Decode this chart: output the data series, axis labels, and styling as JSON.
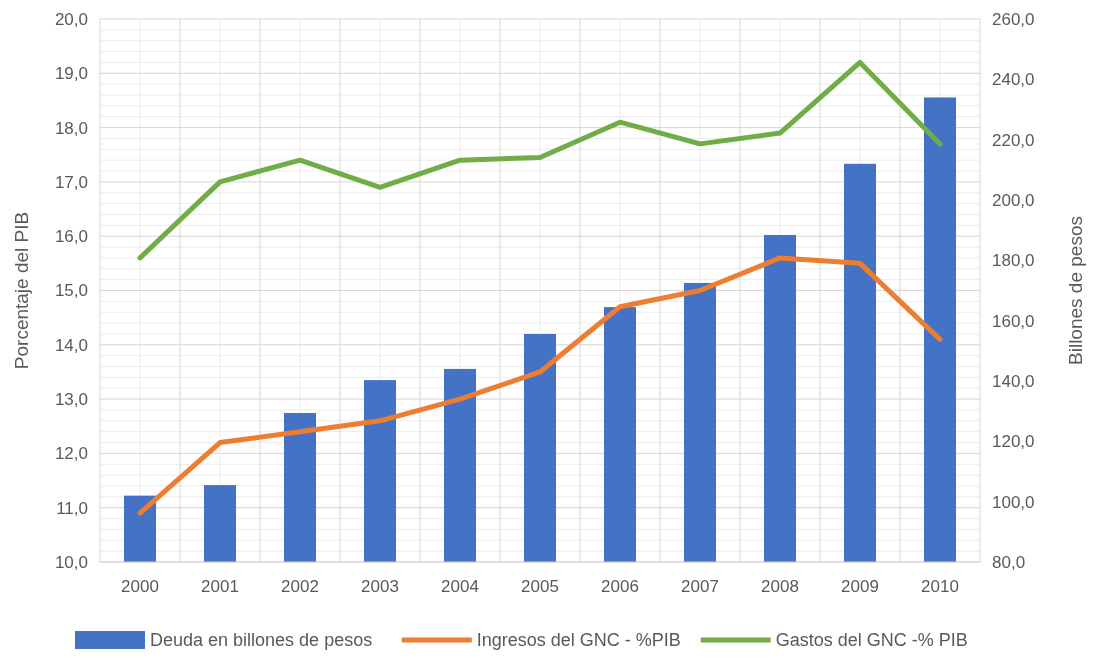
{
  "chart_data": {
    "type": "bar",
    "ylabel": "Porcentaje del PIB",
    "y2label": "Billones de pesos",
    "categories": [
      "2000",
      "2001",
      "2002",
      "2003",
      "2004",
      "2005",
      "2006",
      "2007",
      "2008",
      "2009",
      "2010"
    ],
    "series": [
      {
        "name": "Deuda en billones de pesos",
        "axis": "y2",
        "color": "#4472c4",
        "values": [
          102,
          105.5,
          129.4,
          140.3,
          144,
          155.6,
          164.5,
          172.5,
          188.4,
          212,
          234
        ]
      },
      {
        "name": "Ingresos del GNC - %PIB",
        "type": "line",
        "color": "#ed7d31",
        "values": [
          10.9,
          12.2,
          12.4,
          12.6,
          13.0,
          13.5,
          14.7,
          15.0,
          15.6,
          15.5,
          14.1
        ]
      },
      {
        "name": "Gastos del GNC -% PIB",
        "type": "line",
        "color": "#70ad47",
        "values": [
          15.6,
          17.0,
          17.4,
          16.9,
          17.4,
          17.45,
          18.1,
          17.7,
          17.9,
          19.2,
          17.7
        ]
      }
    ],
    "ylim": [
      10,
      20
    ],
    "yticks": [
      {
        "value": 10,
        "label": "10,0"
      },
      {
        "value": 11,
        "label": "11,0"
      },
      {
        "value": 12,
        "label": "12,0"
      },
      {
        "value": 13,
        "label": "13,0"
      },
      {
        "value": 14,
        "label": "14,0"
      },
      {
        "value": 15,
        "label": "15,0"
      },
      {
        "value": 16,
        "label": "16,0"
      },
      {
        "value": 17,
        "label": "17,0"
      },
      {
        "value": 18,
        "label": "18,0"
      },
      {
        "value": 19,
        "label": "19,0"
      },
      {
        "value": 20,
        "label": "20,0"
      }
    ],
    "y2lim": [
      80,
      260
    ],
    "y2ticks": [
      {
        "value": 80,
        "label": "80,0"
      },
      {
        "value": 100,
        "label": "100,0"
      },
      {
        "value": 120,
        "label": "120,0"
      },
      {
        "value": 140,
        "label": "140,0"
      },
      {
        "value": 160,
        "label": "160,0"
      },
      {
        "value": 180,
        "label": "180,0"
      },
      {
        "value": 200,
        "label": "200,0"
      },
      {
        "value": 220,
        "label": "220,0"
      },
      {
        "value": 240,
        "label": "240,0"
      },
      {
        "value": 260,
        "label": "260,0"
      }
    ],
    "grid": true,
    "legend": "bottom"
  }
}
